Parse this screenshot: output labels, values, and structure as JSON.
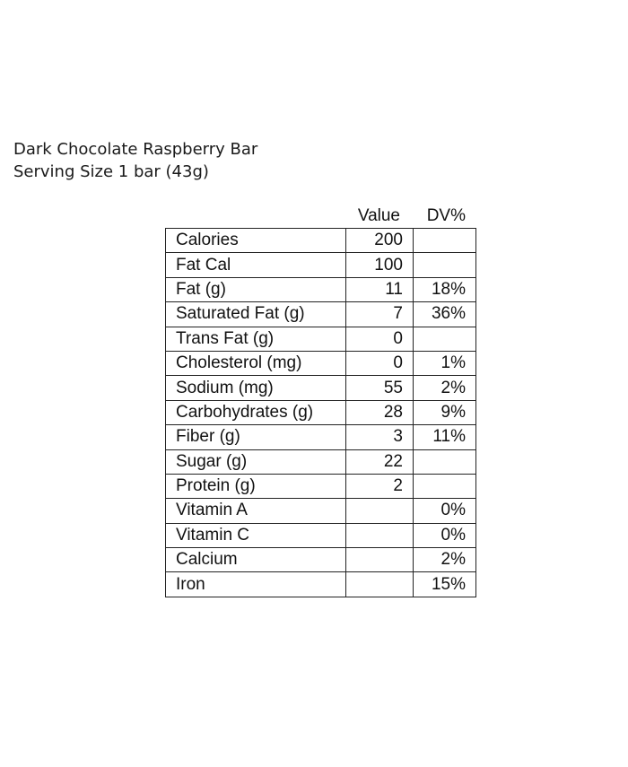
{
  "header": {
    "product_name": "Dark Chocolate Raspberry Bar",
    "serving_size": "Serving Size 1 bar (43g)"
  },
  "table": {
    "columns": {
      "value": "Value",
      "dv": "DV%"
    },
    "rows": [
      {
        "name": "Calories",
        "value": "200",
        "dv": ""
      },
      {
        "name": "Fat Cal",
        "value": "100",
        "dv": ""
      },
      {
        "name": "Fat (g)",
        "value": "11",
        "dv": "18%"
      },
      {
        "name": "Saturated Fat (g)",
        "value": "7",
        "dv": "36%"
      },
      {
        "name": "Trans Fat (g)",
        "value": "0",
        "dv": ""
      },
      {
        "name": "Cholesterol (mg)",
        "value": "0",
        "dv": "1%"
      },
      {
        "name": "Sodium (mg)",
        "value": "55",
        "dv": "2%"
      },
      {
        "name": "Carbohydrates (g)",
        "value": "28",
        "dv": "9%"
      },
      {
        "name": "Fiber (g)",
        "value": "3",
        "dv": "11%"
      },
      {
        "name": "Sugar (g)",
        "value": "22",
        "dv": ""
      },
      {
        "name": "Protein (g)",
        "value": "2",
        "dv": ""
      },
      {
        "name": "Vitamin A",
        "value": "",
        "dv": "0%"
      },
      {
        "name": "Vitamin C",
        "value": "",
        "dv": "0%"
      },
      {
        "name": "Calcium",
        "value": "",
        "dv": "2%"
      },
      {
        "name": "Iron",
        "value": "",
        "dv": "15%"
      }
    ]
  }
}
